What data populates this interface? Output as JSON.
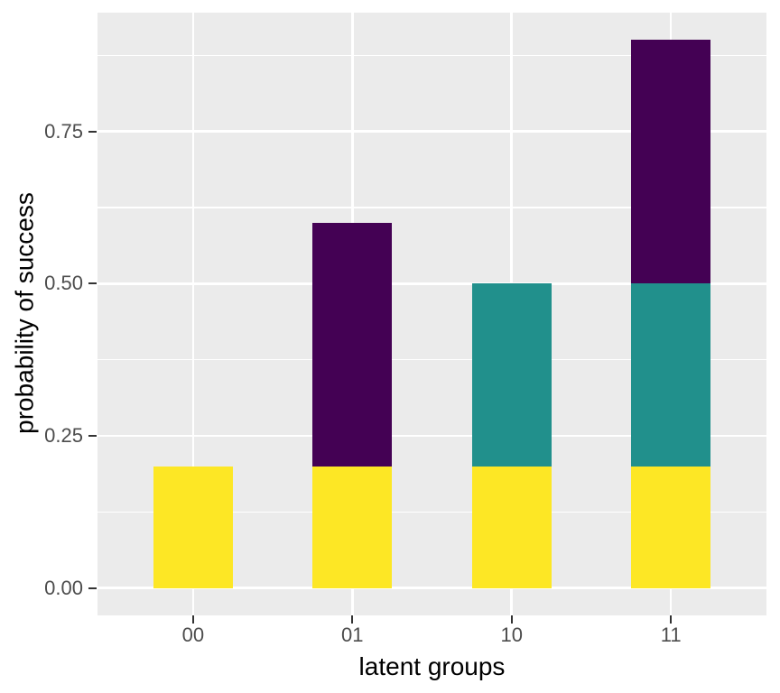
{
  "chart_data": {
    "type": "bar",
    "stacked": true,
    "title": "",
    "xlabel": "latent groups",
    "ylabel": "probability of success",
    "categories": [
      "00",
      "01",
      "10",
      "11"
    ],
    "series": [
      {
        "name": "bottom-segment",
        "color": "#FDE725",
        "values": [
          0.2,
          0.2,
          0.2,
          0.2
        ]
      },
      {
        "name": "middle-segment",
        "color": "#21908C",
        "values": [
          0.0,
          0.0,
          0.3,
          0.3
        ]
      },
      {
        "name": "top-segment",
        "color": "#440154",
        "values": [
          0.0,
          0.4,
          0.0,
          0.4
        ]
      }
    ],
    "stack_totals": [
      0.2,
      0.6,
      0.5,
      0.9
    ],
    "y_ticks": [
      0.0,
      0.25,
      0.5,
      0.75
    ],
    "y_tick_labels": [
      "0.00",
      "0.25",
      "0.50",
      "0.75"
    ],
    "y_minor_ticks": [
      0.125,
      0.375,
      0.625,
      0.875
    ],
    "ylim": [
      -0.045,
      0.945
    ],
    "x_expansion_units": 0.6,
    "bar_width_units": 0.5,
    "grid": true,
    "legend": "none",
    "colors": {
      "panel_background": "#EBEBEB",
      "grid_line": "#FFFFFF",
      "tick_label": "#4D4D4D",
      "tick_mark": "#333333",
      "axis_title": "#000000",
      "figure_background": "#FFFFFF"
    }
  }
}
